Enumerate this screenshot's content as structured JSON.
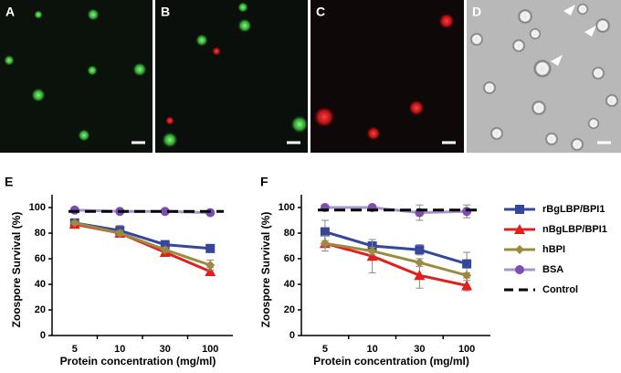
{
  "panels": [
    {
      "label": "A"
    },
    {
      "label": "B"
    },
    {
      "label": "C"
    },
    {
      "label": "D"
    }
  ],
  "chart_data": [
    {
      "type": "line",
      "panel_label": "E",
      "y_label": "Zoospore Survival (%)",
      "x_label": "Protein concentration (mg/ml)",
      "categories": [
        "5",
        "10",
        "30",
        "100"
      ],
      "ylim": [
        0,
        110
      ],
      "yticks": [
        0,
        20,
        40,
        60,
        80,
        100
      ],
      "series": [
        {
          "color": "#34479b",
          "marker": "square",
          "values": [
            88,
            82,
            71,
            68
          ],
          "errors": [
            2,
            4,
            3,
            3
          ]
        },
        {
          "color": "#e0201c",
          "marker": "triangle",
          "values": [
            87,
            80,
            65,
            50
          ],
          "errors": [
            2,
            2,
            2,
            3
          ]
        },
        {
          "color": "#9c8a3e",
          "marker": "diamond",
          "values": [
            88,
            80,
            67,
            55
          ],
          "errors": [
            1,
            2,
            2,
            4
          ]
        },
        {
          "color": "#a595cc",
          "marker": "circle",
          "values": [
            98,
            97,
            97,
            96
          ],
          "errors": [
            0,
            1,
            1,
            1
          ]
        },
        {
          "color": "#000000",
          "marker": "none",
          "dash": true,
          "values": [
            97,
            97,
            97,
            97
          ]
        }
      ]
    },
    {
      "type": "line",
      "panel_label": "F",
      "y_label": "Zoospore Survival (%)",
      "x_label": "Protein concentration (mg/ml)",
      "categories": [
        "5",
        "10",
        "30",
        "100"
      ],
      "ylim": [
        0,
        110
      ],
      "yticks": [
        0,
        20,
        40,
        60,
        80,
        100
      ],
      "legend": "right",
      "series": [
        {
          "name": "rBgLBP/BPI1",
          "color": "#34479b",
          "marker": "square",
          "values": [
            81,
            70,
            67,
            56
          ],
          "errors": [
            9,
            5,
            4,
            9
          ]
        },
        {
          "name": "nBgLBP/BPI1",
          "color": "#e0201c",
          "marker": "triangle",
          "values": [
            72,
            62,
            47,
            39
          ],
          "errors": [
            6,
            13,
            10,
            4
          ]
        },
        {
          "name": "hBPI",
          "color": "#9c8a3e",
          "marker": "diamond",
          "values": [
            72,
            66,
            57,
            47
          ],
          "errors": [
            2,
            3,
            3,
            2
          ]
        },
        {
          "name": "BSA",
          "color": "#a595cc",
          "marker": "circle",
          "values": [
            100,
            100,
            96,
            97
          ],
          "errors": [
            0,
            0,
            6,
            5
          ]
        },
        {
          "name": "Control",
          "color": "#000000",
          "marker": "none",
          "dash": true,
          "values": [
            98,
            98,
            98,
            98
          ]
        }
      ]
    }
  ]
}
